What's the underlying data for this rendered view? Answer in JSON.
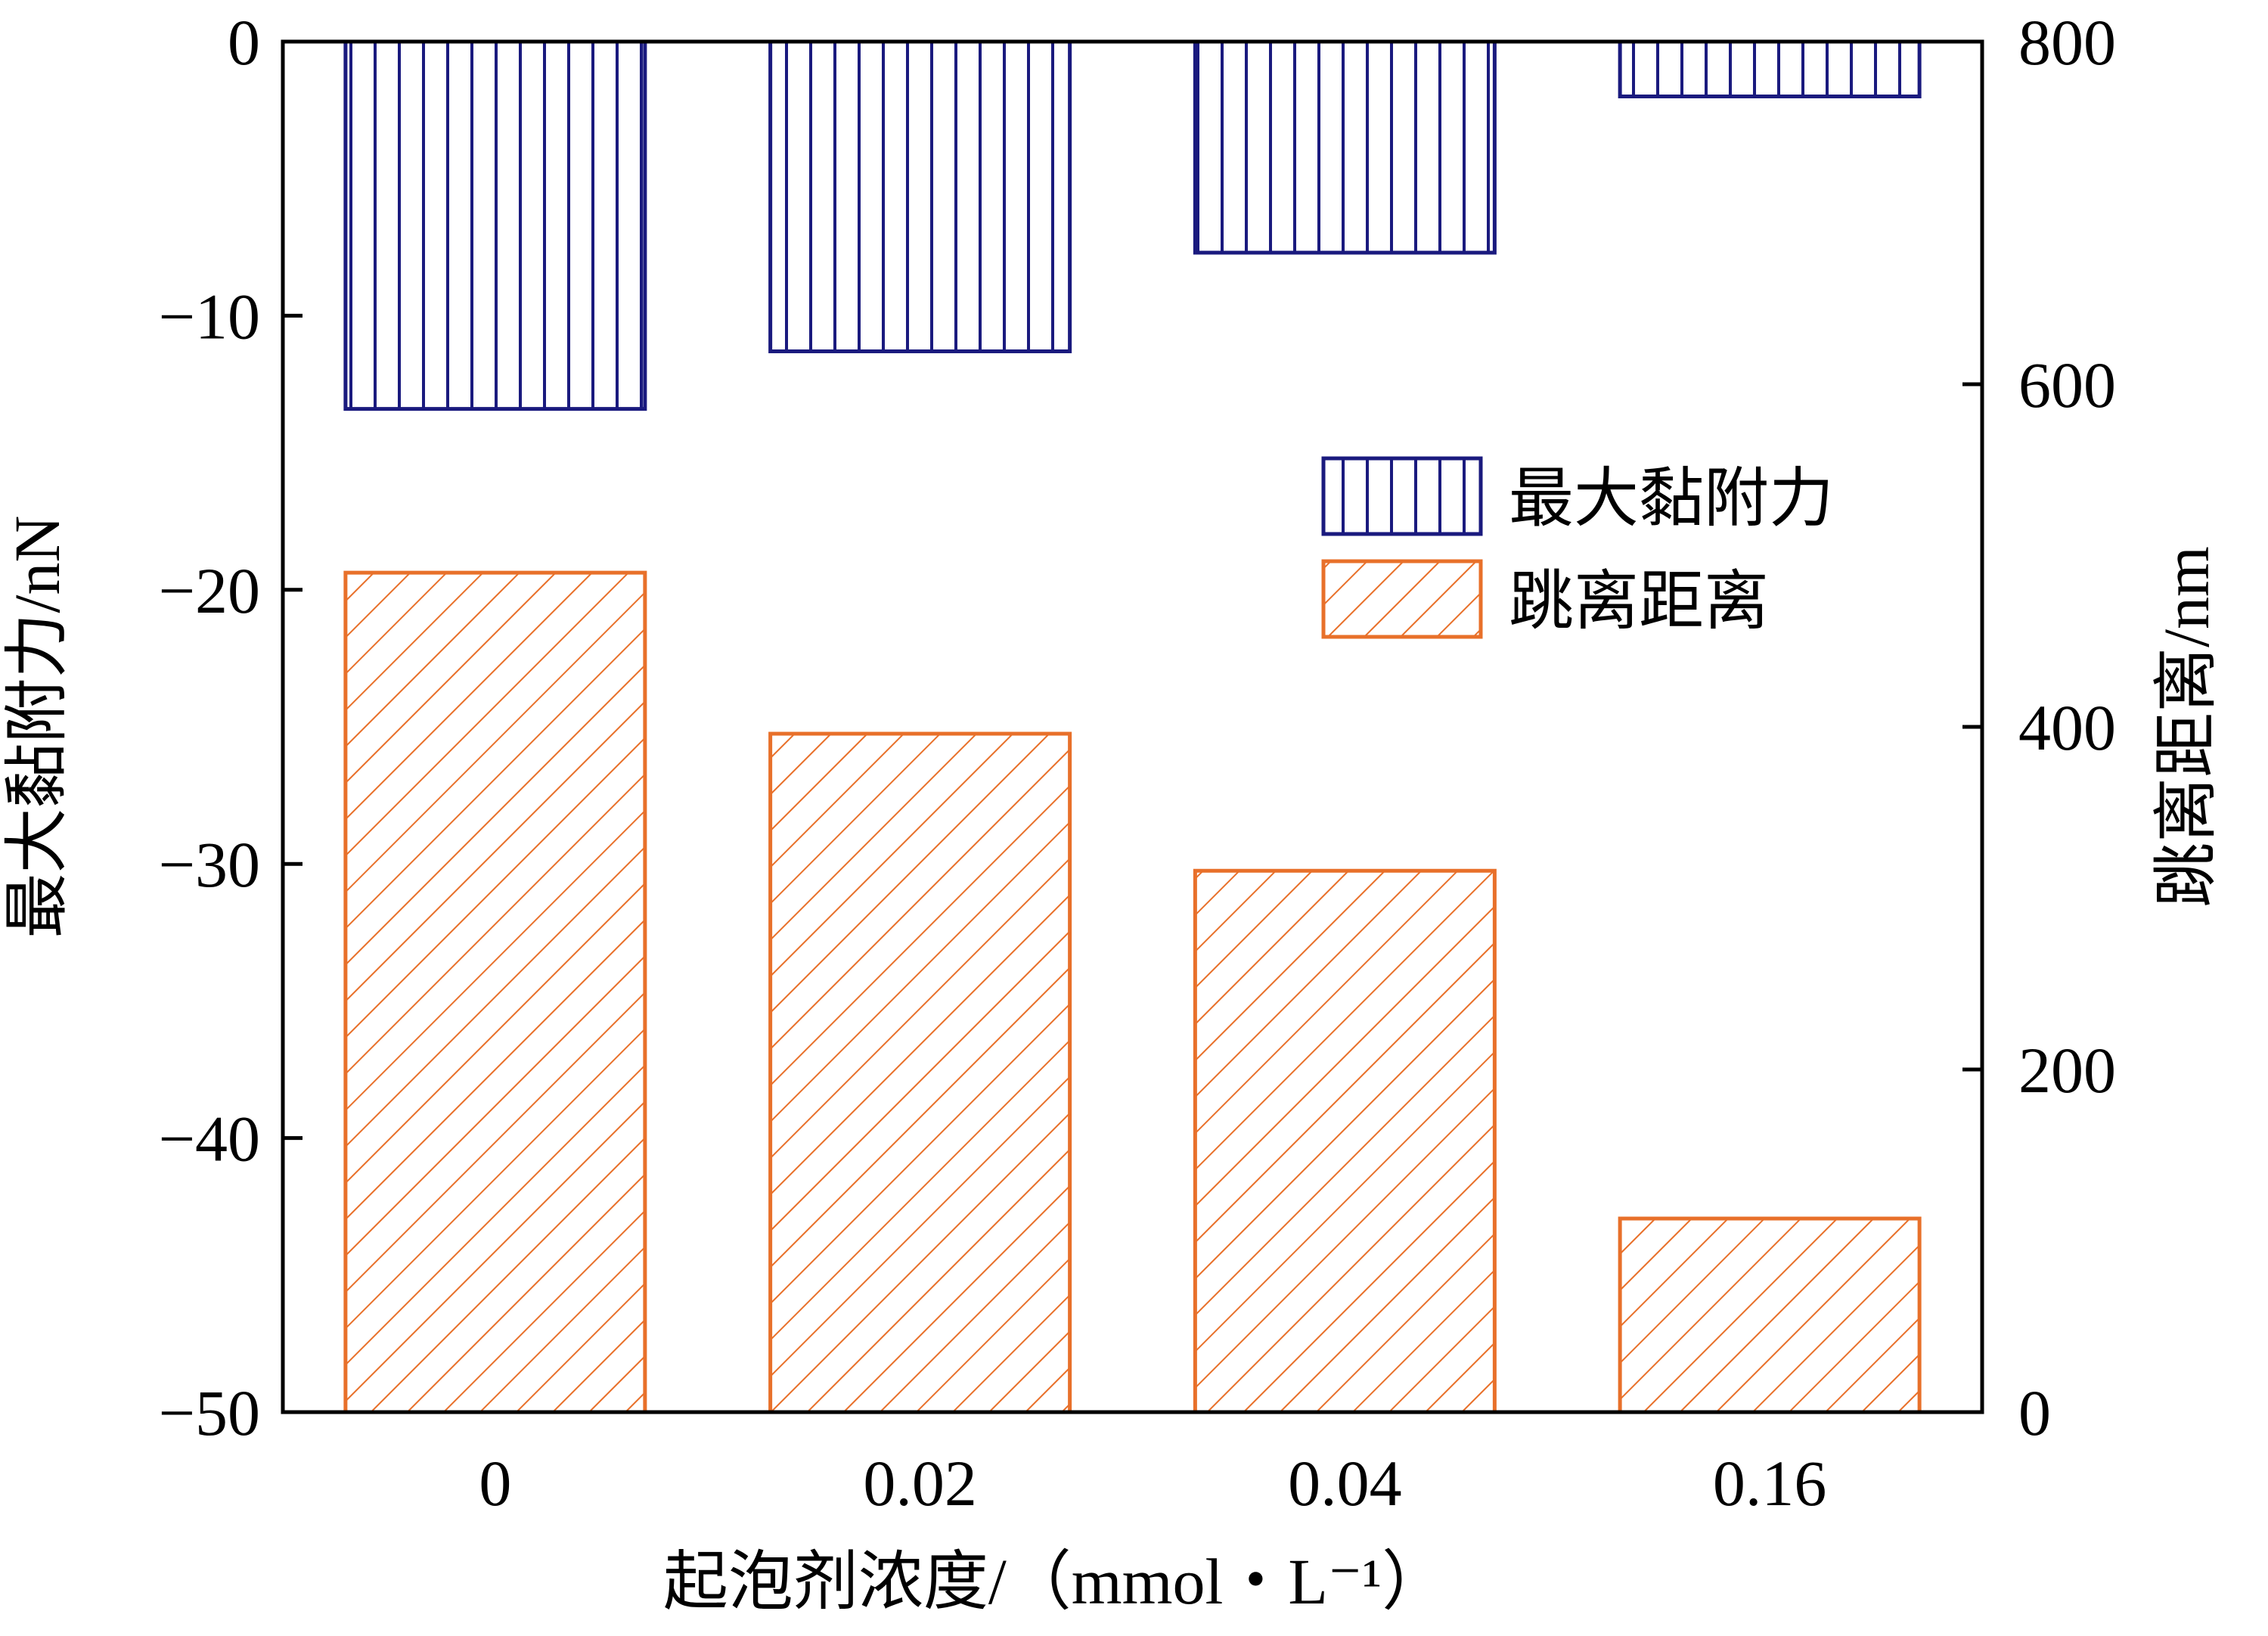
{
  "colors": {
    "force": "#1a1a7e",
    "distance": "#e8702a",
    "axis": "#000000"
  },
  "chart_data": {
    "type": "bar",
    "categories": [
      "0",
      "0.02",
      "0.04",
      "0.16"
    ],
    "xlabel": "起泡剂浓度/（mmol・L⁻¹）",
    "ylabel_left": "最大黏附力/nN",
    "ylabel_right": "跳离距离/nm",
    "ylim_left": [
      -50,
      0
    ],
    "ylim_right": [
      0,
      800
    ],
    "yticks_left": [
      "0",
      "−10",
      "−20",
      "−30",
      "−40",
      "−50"
    ],
    "yticks_right": [
      "800",
      "600",
      "400",
      "200",
      "0"
    ],
    "legend_position": "right",
    "grid": false,
    "series": [
      {
        "name": "最大黏附力",
        "axis": "left",
        "pattern": "vertical-lines",
        "values": [
          -13.4,
          -11.3,
          -7.7,
          -2.0
        ]
      },
      {
        "name": "跳离距离",
        "axis": "right",
        "pattern": "diagonal-hatch",
        "values": [
          490,
          396,
          316,
          113
        ]
      }
    ]
  }
}
